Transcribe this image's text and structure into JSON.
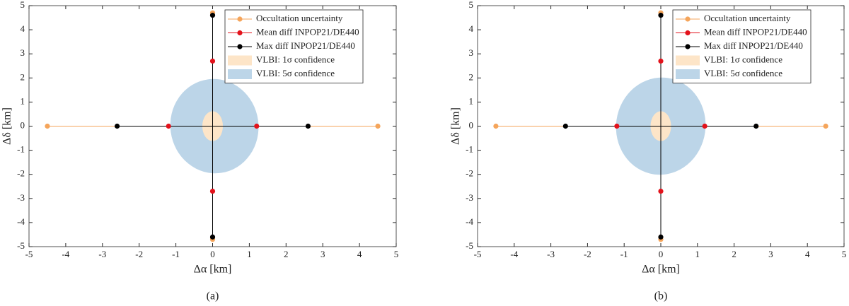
{
  "chart_data": [
    {
      "type": "scatter",
      "caption": "(a)",
      "xlabel": "Δα [km]",
      "ylabel": "Δδ [km]",
      "xlim": [
        -5,
        5
      ],
      "ylim": [
        -5,
        5
      ],
      "xticks": [
        -5,
        -4,
        -3,
        -2,
        -1,
        0,
        1,
        2,
        3,
        4,
        5
      ],
      "yticks": [
        -5,
        -4,
        -3,
        -2,
        -1,
        0,
        1,
        2,
        3,
        4,
        5
      ],
      "grid": false,
      "legend": "upper right",
      "series": [
        {
          "name": "Occultation uncertainty",
          "color": "#f5a55b",
          "x": [
            -4.5,
            4.5,
            null,
            0,
            0
          ],
          "values": [
            0,
            0,
            null,
            4.7,
            -4.7
          ]
        },
        {
          "name": "Mean diff INPOP21/DE440",
          "color": "#e3121b",
          "x": [
            -1.2,
            1.2,
            null,
            0,
            0
          ],
          "values": [
            0,
            0,
            null,
            2.7,
            -2.7
          ]
        },
        {
          "name": "Max diff INPOP21/DE440",
          "color": "#000000",
          "x": [
            -2.6,
            2.6,
            null,
            0,
            0
          ],
          "values": [
            0,
            0,
            null,
            4.6,
            -4.6
          ]
        }
      ],
      "regions": [
        {
          "name": "VLBI: 1σ confidence",
          "color": "#fde5c8",
          "center": [
            0,
            0
          ],
          "rx": 0.28,
          "ry": 0.62,
          "angle": 0
        },
        {
          "name": "VLBI: 5σ confidence",
          "color": "#bcd5e8",
          "center": [
            0.05,
            0
          ],
          "rx": 1.2,
          "ry": 1.96,
          "angle": 8
        }
      ]
    },
    {
      "type": "scatter",
      "caption": "(b)",
      "xlabel": "Δα [km]",
      "ylabel": "Δδ [km]",
      "xlim": [
        -5,
        5
      ],
      "ylim": [
        -5,
        5
      ],
      "xticks": [
        -5,
        -4,
        -3,
        -2,
        -1,
        0,
        1,
        2,
        3,
        4,
        5
      ],
      "yticks": [
        -5,
        -4,
        -3,
        -2,
        -1,
        0,
        1,
        2,
        3,
        4,
        5
      ],
      "grid": false,
      "legend": "upper right",
      "series": [
        {
          "name": "Occultation uncertainty",
          "color": "#f5a55b",
          "x": [
            -4.5,
            4.5,
            null,
            0,
            0
          ],
          "values": [
            0,
            0,
            null,
            4.7,
            -4.7
          ]
        },
        {
          "name": "Mean diff INPOP21/DE440",
          "color": "#e3121b",
          "x": [
            -1.2,
            1.2,
            null,
            0,
            0
          ],
          "values": [
            0,
            0,
            null,
            2.7,
            -2.7
          ]
        },
        {
          "name": "Max diff INPOP21/DE440",
          "color": "#000000",
          "x": [
            -2.6,
            2.6,
            null,
            0,
            0
          ],
          "values": [
            0,
            0,
            null,
            4.6,
            -4.6
          ]
        }
      ],
      "regions": [
        {
          "name": "VLBI: 1σ confidence",
          "color": "#fde5c8",
          "center": [
            0,
            0
          ],
          "rx": 0.28,
          "ry": 0.62,
          "angle": 0
        },
        {
          "name": "VLBI: 5σ confidence",
          "color": "#bcd5e8",
          "center": [
            0,
            0
          ],
          "rx": 1.22,
          "ry": 2.02,
          "angle": -8
        }
      ]
    }
  ]
}
